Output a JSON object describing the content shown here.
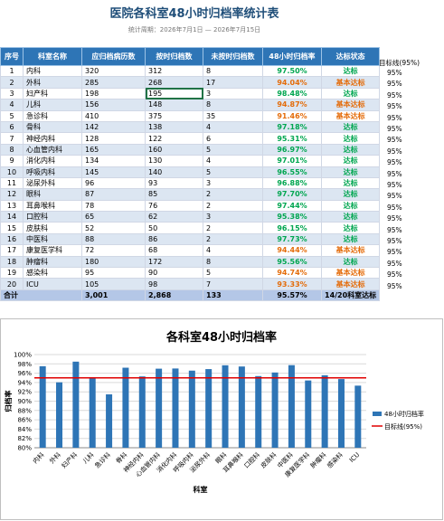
{
  "header": {
    "title": "医院各科室48小时归档率统计表",
    "subtitle": "统计周期：2026年7月1日 — 2026年7月15日"
  },
  "table": {
    "headers": [
      "序号",
      "科室名称",
      "应归档病历数",
      "按时归档数",
      "未按时归档数",
      "48小时归档率",
      "达标状态"
    ],
    "rows": [
      [
        "1",
        "内科",
        "320",
        "312",
        "8",
        "97.50%",
        "达标"
      ],
      [
        "2",
        "外科",
        "285",
        "268",
        "17",
        "94.04%",
        "基本达标"
      ],
      [
        "3",
        "妇产科",
        "198",
        "195",
        "3",
        "98.48%",
        "达标"
      ],
      [
        "4",
        "儿科",
        "156",
        "148",
        "8",
        "94.87%",
        "基本达标"
      ],
      [
        "5",
        "急诊科",
        "410",
        "375",
        "35",
        "91.46%",
        "基本达标"
      ],
      [
        "6",
        "骨科",
        "142",
        "138",
        "4",
        "97.18%",
        "达标"
      ],
      [
        "7",
        "神经内科",
        "128",
        "122",
        "6",
        "95.31%",
        "达标"
      ],
      [
        "8",
        "心血管内科",
        "165",
        "160",
        "5",
        "96.97%",
        "达标"
      ],
      [
        "9",
        "消化内科",
        "134",
        "130",
        "4",
        "97.01%",
        "达标"
      ],
      [
        "10",
        "呼吸内科",
        "145",
        "140",
        "5",
        "96.55%",
        "达标"
      ],
      [
        "11",
        "泌尿外科",
        "96",
        "93",
        "3",
        "96.88%",
        "达标"
      ],
      [
        "12",
        "眼科",
        "87",
        "85",
        "2",
        "97.70%",
        "达标"
      ],
      [
        "13",
        "耳鼻喉科",
        "78",
        "76",
        "2",
        "97.44%",
        "达标"
      ],
      [
        "14",
        "口腔科",
        "65",
        "62",
        "3",
        "95.38%",
        "达标"
      ],
      [
        "15",
        "皮肤科",
        "52",
        "50",
        "2",
        "96.15%",
        "达标"
      ],
      [
        "16",
        "中医科",
        "88",
        "86",
        "2",
        "97.73%",
        "达标"
      ],
      [
        "17",
        "康复医学科",
        "72",
        "68",
        "4",
        "94.44%",
        "基本达标"
      ],
      [
        "18",
        "肿瘤科",
        "180",
        "172",
        "8",
        "95.56%",
        "达标"
      ],
      [
        "19",
        "感染科",
        "95",
        "90",
        "5",
        "94.74%",
        "基本达标"
      ],
      [
        "20",
        "ICU",
        "105",
        "98",
        "7",
        "93.33%",
        "基本达标"
      ]
    ],
    "total": [
      "合计",
      "3,001",
      "2,868",
      "133",
      "95.57%",
      "14/20科室达标"
    ],
    "status_colors": {
      "达标": "#00a650",
      "基本达标": "#e46c0a"
    }
  },
  "side": {
    "header": "目标线(95%)",
    "values": [
      "95%",
      "95%",
      "95%",
      "95%",
      "95%",
      "95%",
      "95%",
      "95%",
      "95%",
      "95%",
      "95%",
      "95%",
      "95%",
      "95%",
      "95%",
      "95%",
      "95%",
      "95%",
      "95%",
      "95%"
    ]
  },
  "chart": {
    "type": "bar",
    "title": "各科室48小时归档率",
    "x_label": "科室",
    "y_label": "归档率",
    "categories": [
      "内科",
      "外科",
      "妇产科",
      "儿科",
      "急诊科",
      "骨科",
      "神经内科",
      "心血管内科",
      "消化内科",
      "呼吸内科",
      "泌尿外科",
      "眼科",
      "耳鼻喉科",
      "口腔科",
      "皮肤科",
      "中医科",
      "康复医学科",
      "肿瘤科",
      "感染科",
      "ICU"
    ],
    "series": [
      {
        "name": "48小时归档率",
        "color": "#2e75b6",
        "values": [
          97.5,
          94.04,
          98.48,
          94.87,
          91.46,
          97.18,
          95.31,
          96.97,
          97.01,
          96.55,
          96.88,
          97.7,
          97.44,
          95.38,
          96.15,
          97.73,
          94.44,
          95.56,
          94.74,
          93.33
        ]
      }
    ],
    "target": {
      "name": "目标线(95%)",
      "value": 95,
      "color": "#e00000"
    },
    "ylim": [
      80,
      100
    ],
    "yticks": [
      {
        "value": 80,
        "label": "80%"
      },
      {
        "value": 82,
        "label": "82%"
      },
      {
        "value": 84,
        "label": "84%"
      },
      {
        "value": 86,
        "label": "86%"
      },
      {
        "value": 88,
        "label": "88%"
      },
      {
        "value": 90,
        "label": "90%"
      },
      {
        "value": 92,
        "label": "92%"
      },
      {
        "value": 94,
        "label": "94%"
      },
      {
        "value": 96,
        "label": "96%"
      },
      {
        "value": 98,
        "label": "98%"
      },
      {
        "value": 100,
        "label": "100%"
      }
    ],
    "grid": true
  }
}
